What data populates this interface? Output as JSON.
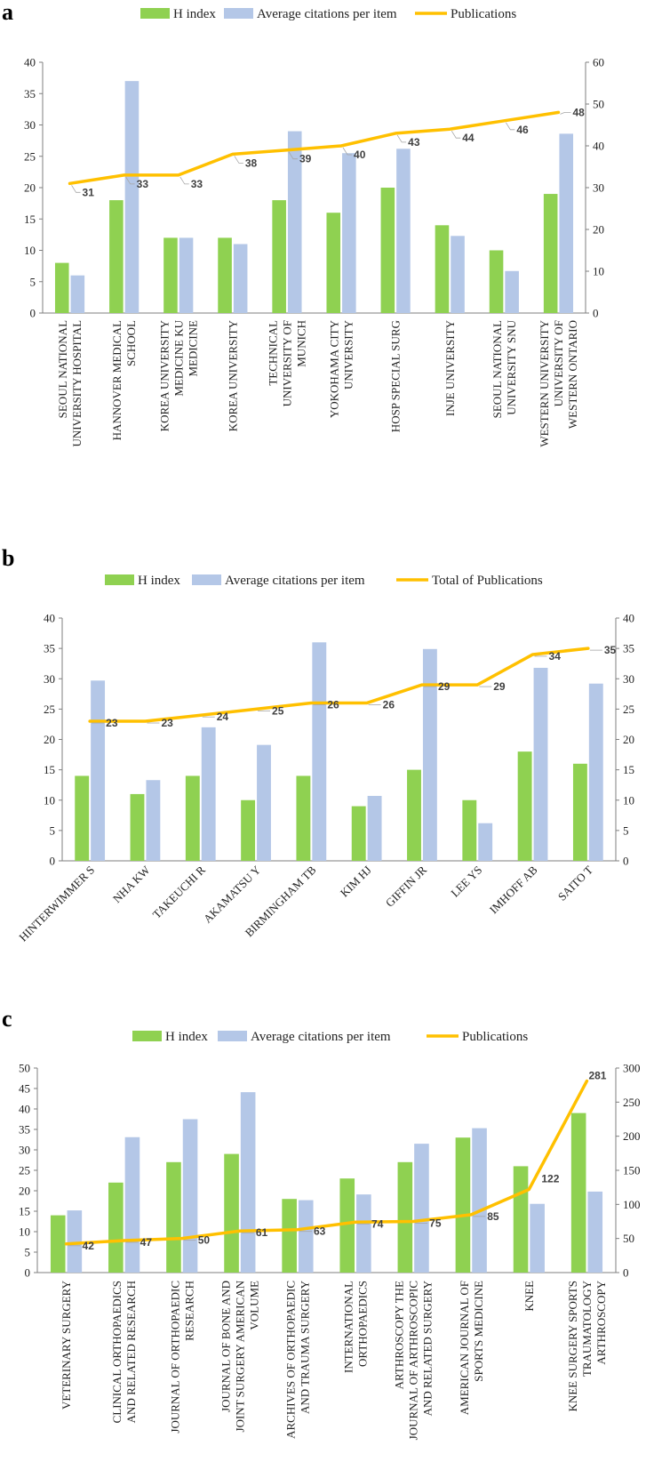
{
  "colors": {
    "h_index": "#8fd151",
    "avg_citations": "#b4c7e7",
    "publications": "#ffc000"
  },
  "chart_data": [
    {
      "type": "bar",
      "panel": "a",
      "legend": [
        "H index",
        "Average citations per item",
        "Publications"
      ],
      "categories": [
        [
          "SEOUL NATIONAL",
          "UNIVERSITY HOSPITAL"
        ],
        [
          "HANNOVER MEDICAL",
          "SCHOOL"
        ],
        [
          "KOREA UNIVERSITY",
          "MEDICINE KU",
          "MEDICINE"
        ],
        [
          "KOREA UNIVERSITY"
        ],
        [
          "TECHNICAL",
          "UNIVERSITY OF",
          "MUNICH"
        ],
        [
          "YOKOHAMA CITY",
          "UNIVERSITY"
        ],
        [
          "HOSP SPECIAL SURG"
        ],
        [
          "INJE UNIVERSITY"
        ],
        [
          "SEOUL NATIONAL",
          "UNIVERSITY SNU"
        ],
        [
          "WESTERN UNIVERSITY",
          "UNIVERSITY OF",
          "WESTERN ONTARIO"
        ]
      ],
      "series": [
        {
          "name": "H index",
          "axis": "left",
          "values": [
            8,
            18,
            12,
            12,
            18,
            16,
            20,
            14,
            10,
            19
          ]
        },
        {
          "name": "Average citations per item",
          "axis": "left",
          "values": [
            6,
            37,
            12,
            11,
            29,
            25.5,
            26.2,
            12.3,
            6.7,
            28.6
          ]
        },
        {
          "name": "Publications",
          "type": "line",
          "axis": "right",
          "values": [
            31,
            33,
            33,
            38,
            39,
            40,
            43,
            44,
            46,
            48
          ]
        }
      ],
      "ylim_left": [
        0,
        40
      ],
      "yticks_left": [
        0,
        5,
        10,
        15,
        20,
        25,
        30,
        35,
        40
      ],
      "ylim_right": [
        0,
        60
      ],
      "yticks_right": [
        0,
        10,
        20,
        30,
        40,
        50,
        60
      ],
      "catStyle": "vertical"
    },
    {
      "type": "bar",
      "panel": "b",
      "legend": [
        "H index",
        "Average citations per item",
        "Total of Publications"
      ],
      "categories": [
        [
          "HINTERWIMMER S"
        ],
        [
          "NHA KW"
        ],
        [
          "TAKEUCHI R"
        ],
        [
          "AKAMATSU Y"
        ],
        [
          "BIRMINGHAM TB"
        ],
        [
          "KIM HJ"
        ],
        [
          "GIFFIN JR"
        ],
        [
          "LEE YS"
        ],
        [
          "IMHOFF AB"
        ],
        [
          "SAITO T"
        ]
      ],
      "series": [
        {
          "name": "H index",
          "axis": "left",
          "values": [
            14,
            11,
            14,
            10,
            14,
            9,
            15,
            10,
            18,
            16
          ]
        },
        {
          "name": "Average citations per item",
          "axis": "left",
          "values": [
            29.7,
            13.3,
            22,
            19.1,
            36,
            10.7,
            34.9,
            6.2,
            31.8,
            29.2
          ]
        },
        {
          "name": "Total of Publications",
          "type": "line",
          "axis": "right",
          "values": [
            23,
            23,
            24,
            25,
            26,
            26,
            29,
            29,
            34,
            35
          ]
        }
      ],
      "ylim_left": [
        0,
        40
      ],
      "yticks_left": [
        0,
        5,
        10,
        15,
        20,
        25,
        30,
        35,
        40
      ],
      "ylim_right": [
        0,
        40
      ],
      "yticks_right": [
        0,
        5,
        10,
        15,
        20,
        25,
        30,
        35,
        40
      ],
      "catStyle": "diagonal"
    },
    {
      "type": "bar",
      "panel": "c",
      "legend": [
        "H index",
        "Average citations per item",
        "Publications"
      ],
      "categories": [
        [
          "VETERINARY SURGERY"
        ],
        [
          "CLINICAL ORTHOPAEDICS",
          "AND RELATED RESEARCH"
        ],
        [
          "JOURNAL OF ORTHOPAEDIC",
          "RESEARCH"
        ],
        [
          "JOURNAL OF BONE AND",
          "JOINT SURGERY AMERICAN",
          "VOLUME"
        ],
        [
          "ARCHIVES OF ORTHOPAEDIC",
          "AND TRAUMA SURGERY"
        ],
        [
          "INTERNATIONAL",
          "ORTHOPAEDICS"
        ],
        [
          "ARTHROSCOPY THE",
          "JOURNAL OF ARTHROSCOPIC",
          "AND RELATED SURGERY"
        ],
        [
          "AMERICAN JOURNAL OF",
          "SPORTS MEDICINE"
        ],
        [
          "KNEE"
        ],
        [
          "KNEE SURGERY SPORTS",
          "TRAUMATOLOGY",
          "ARTHROSCOPY"
        ]
      ],
      "series": [
        {
          "name": "H index",
          "axis": "left",
          "values": [
            14,
            22,
            27,
            29,
            18,
            23,
            27,
            33,
            26,
            39
          ]
        },
        {
          "name": "Average citations per item",
          "axis": "left",
          "values": [
            15.2,
            33.1,
            37.5,
            44.1,
            17.7,
            19.1,
            31.5,
            35.3,
            16.8,
            19.8
          ]
        },
        {
          "name": "Publications",
          "type": "line",
          "axis": "right",
          "values": [
            42,
            47,
            50,
            61,
            63,
            74,
            75,
            85,
            122,
            281
          ]
        }
      ],
      "ylim_left": [
        0,
        50
      ],
      "yticks_left": [
        0,
        5,
        10,
        15,
        20,
        25,
        30,
        35,
        40,
        45,
        50
      ],
      "ylim_right": [
        0,
        300
      ],
      "yticks_right": [
        0,
        50,
        100,
        150,
        200,
        250,
        300
      ],
      "catStyle": "vertical"
    }
  ]
}
